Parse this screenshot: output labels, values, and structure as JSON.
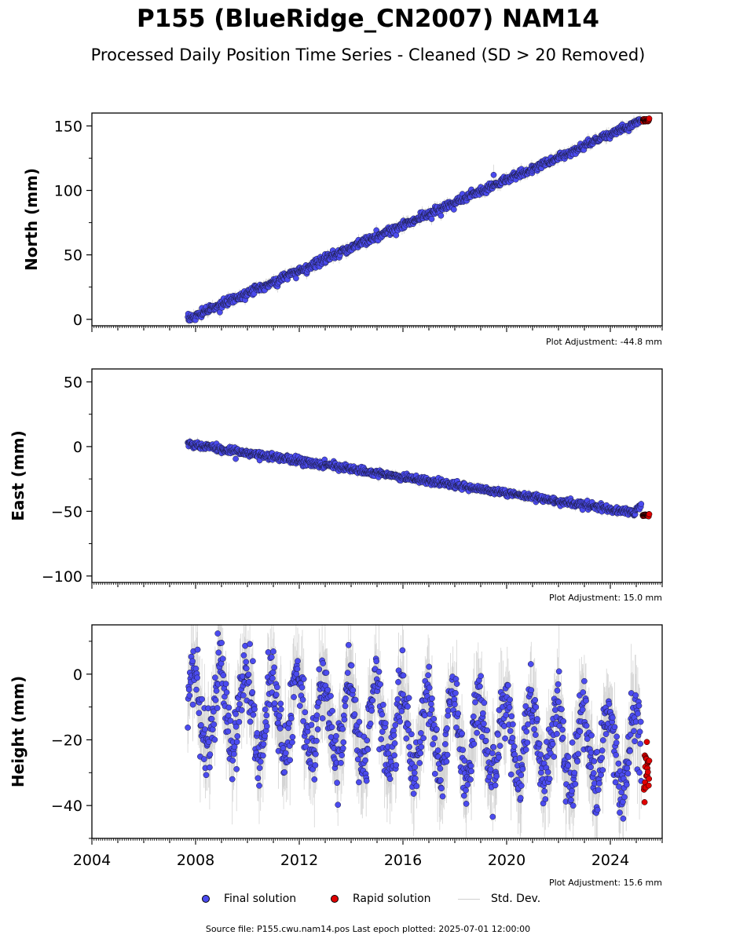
{
  "title": "P155 (BlueRidge_CN2007) NAM14",
  "subtitle": "Processed Daily Position Time Series - Cleaned (SD > 20 Removed)",
  "footer": "Source file: P155.cwu.nam14.pos  Last epoch plotted: 2025-07-01 12:00:00",
  "legend": {
    "final_label": "Final solution",
    "rapid_label": "Rapid solution",
    "std_label": "Std. Dev."
  },
  "colors": {
    "final": "#4b4bef",
    "rapid": "#e00000",
    "std": "#b0b0b0",
    "marker_edge": "#1a1a3a"
  },
  "chart_data": [
    {
      "type": "scatter",
      "ylabel": "North (mm)",
      "ylim": [
        -5,
        160
      ],
      "yticks": [
        0,
        50,
        100,
        150
      ],
      "xlim": [
        2004.0,
        2026.0
      ],
      "adjustment": "Plot Adjustment: -44.8 mm",
      "final": {
        "start": 2007.7,
        "end": 2025.2,
        "y_start": 0,
        "y_end": 154,
        "noise": 1.6,
        "outliers": [
          [
            2019.5,
            112
          ]
        ]
      },
      "rapid": {
        "start": 2025.25,
        "end": 2025.5,
        "y": 154.5,
        "spread": 0.6
      }
    },
    {
      "type": "scatter",
      "ylabel": "East (mm)",
      "ylim": [
        -105,
        60
      ],
      "yticks": [
        -100,
        -50,
        0,
        50
      ],
      "xlim": [
        2004.0,
        2026.0
      ],
      "adjustment": "Plot Adjustment: 15.0 mm",
      "final": {
        "start": 2007.7,
        "end": 2025.2,
        "y_start": 2,
        "y_end": -52,
        "noise": 1.3,
        "bends": [
          [
            2024.9,
            -56
          ],
          [
            2025.0,
            -47
          ]
        ]
      },
      "rapid": {
        "start": 2025.25,
        "end": 2025.5,
        "y": -53,
        "spread": 0.5
      }
    },
    {
      "type": "scatter",
      "ylabel": "Height (mm)",
      "ylim": [
        -50,
        15
      ],
      "yticks": [
        -40,
        -20,
        0
      ],
      "xlim": [
        2004.0,
        2026.0
      ],
      "xticks": [
        2004,
        2008,
        2012,
        2016,
        2020,
        2024
      ],
      "adjustment": "Plot Adjustment: 15.6 mm",
      "final": {
        "start": 2007.7,
        "end": 2025.2,
        "y_start": -10,
        "y_end": -24,
        "noise": 5,
        "seasonal_amplitude": 12
      },
      "rapid": {
        "start": 2025.3,
        "end": 2025.5,
        "y": -29,
        "spread": 4
      }
    }
  ]
}
